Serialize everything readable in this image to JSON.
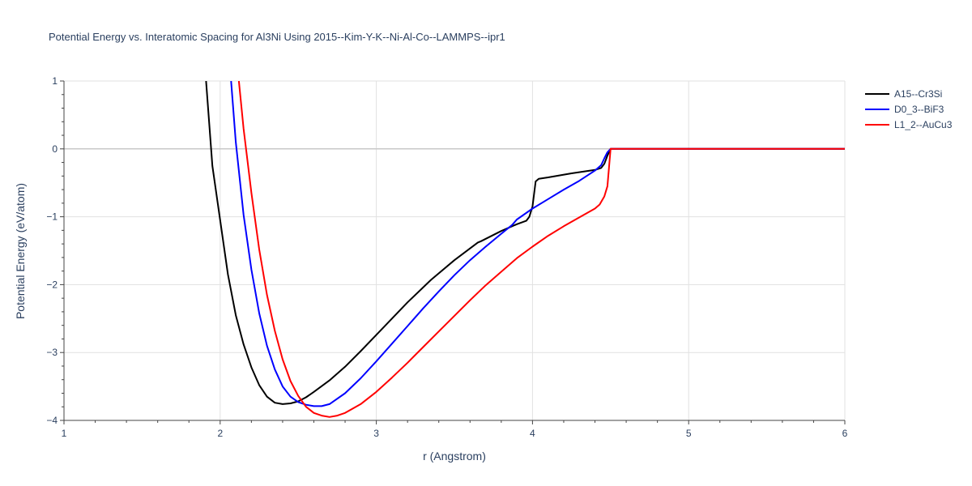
{
  "chart_data": {
    "type": "line",
    "title": "Potential Energy vs. Interatomic Spacing for Al3Ni Using 2015--Kim-Y-K--Ni-Al-Co--LAMMPS--ipr1",
    "xlabel": "r (Angstrom)",
    "ylabel": "Potential Energy (eV/atom)",
    "xlim": [
      1,
      6
    ],
    "ylim": [
      -4,
      1
    ],
    "xticks": [
      "1",
      "2",
      "3",
      "4",
      "5",
      "6"
    ],
    "yticks": [
      "1",
      "0",
      "−1",
      "−2",
      "−3",
      "−4"
    ],
    "xtick_values": [
      1,
      2,
      3,
      4,
      5,
      6
    ],
    "ytick_values": [
      1,
      0,
      -1,
      -2,
      -3,
      -4
    ],
    "grid": true,
    "legend_position": "top-right",
    "series": [
      {
        "name": "A15--Cr3Si",
        "color": "#000000",
        "x": [
          1.91,
          1.95,
          2.0,
          2.05,
          2.1,
          2.15,
          2.2,
          2.25,
          2.3,
          2.35,
          2.4,
          2.45,
          2.5,
          2.55,
          2.6,
          2.7,
          2.8,
          2.9,
          3.0,
          3.1,
          3.2,
          3.35,
          3.5,
          3.65,
          3.67,
          3.8,
          3.9,
          3.96,
          3.98,
          4.0,
          4.02,
          4.04,
          4.1,
          4.25,
          4.4,
          4.44,
          4.46,
          4.48,
          4.5,
          4.6,
          5.0,
          5.5,
          6.0
        ],
        "y": [
          1.0,
          -0.25,
          -1.05,
          -1.85,
          -2.45,
          -2.88,
          -3.22,
          -3.48,
          -3.65,
          -3.74,
          -3.76,
          -3.75,
          -3.72,
          -3.66,
          -3.58,
          -3.41,
          -3.21,
          -2.98,
          -2.74,
          -2.5,
          -2.26,
          -1.93,
          -1.64,
          -1.38,
          -1.36,
          -1.21,
          -1.11,
          -1.06,
          -1.0,
          -0.85,
          -0.48,
          -0.44,
          -0.42,
          -0.36,
          -0.31,
          -0.28,
          -0.22,
          -0.1,
          0.0,
          0.0,
          0.0,
          0.0,
          0.0
        ]
      },
      {
        "name": "D0_3--BiF3",
        "color": "#0000ff",
        "x": [
          2.07,
          2.1,
          2.15,
          2.2,
          2.25,
          2.3,
          2.35,
          2.4,
          2.45,
          2.5,
          2.55,
          2.6,
          2.65,
          2.7,
          2.8,
          2.9,
          3.0,
          3.1,
          3.2,
          3.3,
          3.4,
          3.5,
          3.6,
          3.7,
          3.8,
          3.87,
          3.9,
          4.0,
          4.1,
          4.2,
          4.3,
          4.4,
          4.44,
          4.46,
          4.48,
          4.5,
          4.6,
          5.0,
          5.5,
          6.0
        ],
        "y": [
          1.0,
          0.1,
          -0.97,
          -1.78,
          -2.42,
          -2.9,
          -3.25,
          -3.5,
          -3.65,
          -3.73,
          -3.77,
          -3.79,
          -3.79,
          -3.76,
          -3.6,
          -3.38,
          -3.13,
          -2.87,
          -2.61,
          -2.35,
          -2.1,
          -1.86,
          -1.64,
          -1.44,
          -1.25,
          -1.12,
          -1.04,
          -0.88,
          -0.74,
          -0.6,
          -0.47,
          -0.32,
          -0.24,
          -0.14,
          -0.05,
          0.0,
          0.0,
          0.0,
          0.0,
          0.0
        ]
      },
      {
        "name": "L1_2--AuCu3",
        "color": "#ff0000",
        "x": [
          2.12,
          2.15,
          2.2,
          2.25,
          2.3,
          2.35,
          2.4,
          2.45,
          2.5,
          2.55,
          2.6,
          2.65,
          2.7,
          2.75,
          2.8,
          2.9,
          3.0,
          3.1,
          3.2,
          3.3,
          3.4,
          3.5,
          3.6,
          3.7,
          3.8,
          3.9,
          4.0,
          4.1,
          4.2,
          4.3,
          4.4,
          4.43,
          4.46,
          4.48,
          4.5,
          4.6,
          5.0,
          5.5,
          6.0
        ],
        "y": [
          1.0,
          0.3,
          -0.65,
          -1.48,
          -2.15,
          -2.68,
          -3.1,
          -3.42,
          -3.64,
          -3.8,
          -3.89,
          -3.93,
          -3.95,
          -3.93,
          -3.89,
          -3.76,
          -3.58,
          -3.37,
          -3.15,
          -2.92,
          -2.69,
          -2.46,
          -2.23,
          -2.01,
          -1.81,
          -1.61,
          -1.44,
          -1.28,
          -1.14,
          -1.01,
          -0.88,
          -0.82,
          -0.7,
          -0.55,
          0.0,
          0.0,
          0.0,
          0.0,
          0.0
        ]
      }
    ]
  }
}
